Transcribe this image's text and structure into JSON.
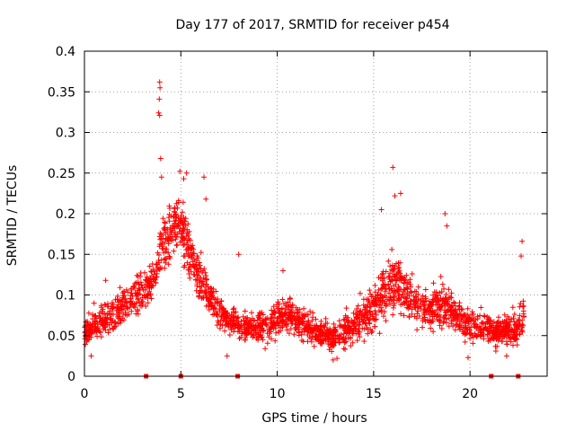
{
  "chart_data": {
    "type": "scatter",
    "title": "Day 177 of 2017, SRMTID for receiver p454",
    "xlabel": "GPS time / hours",
    "ylabel": "SRMTID / TECUs",
    "xlim": [
      0,
      24
    ],
    "ylim": [
      0,
      0.4
    ],
    "grid": true,
    "x_ticks": [
      0,
      5,
      10,
      15,
      20
    ],
    "y_ticks": [
      0,
      0.05,
      0.1,
      0.15,
      0.2,
      0.25,
      0.3,
      0.35,
      0.4
    ],
    "marker": "+",
    "color": "#ff0000",
    "zero_markers_x": [
      3.2,
      5.0,
      7.95,
      21.1,
      22.5
    ],
    "envelope": {
      "x": [
        0,
        0.5,
        1,
        1.5,
        2,
        2.5,
        3,
        3.3,
        3.6,
        3.9,
        4.2,
        4.5,
        4.8,
        5.0,
        5.3,
        5.6,
        6.0,
        6.3,
        6.7,
        7.0,
        7.5,
        8,
        8.5,
        9,
        9.5,
        10,
        10.5,
        11,
        11.5,
        12,
        12.5,
        13,
        13.5,
        14,
        14.5,
        15,
        15.3,
        15.6,
        16,
        16.3,
        16.6,
        17,
        17.5,
        18,
        18.5,
        19,
        19.5,
        20,
        20.5,
        21,
        21.5,
        22,
        22.5,
        22.8
      ],
      "mean": [
        0.055,
        0.062,
        0.068,
        0.075,
        0.085,
        0.095,
        0.105,
        0.11,
        0.12,
        0.15,
        0.17,
        0.18,
        0.19,
        0.185,
        0.17,
        0.14,
        0.12,
        0.105,
        0.09,
        0.08,
        0.068,
        0.062,
        0.06,
        0.06,
        0.062,
        0.07,
        0.078,
        0.07,
        0.06,
        0.055,
        0.05,
        0.048,
        0.055,
        0.065,
        0.075,
        0.085,
        0.095,
        0.105,
        0.115,
        0.115,
        0.105,
        0.095,
        0.085,
        0.08,
        0.09,
        0.08,
        0.07,
        0.065,
        0.06,
        0.058,
        0.055,
        0.055,
        0.06,
        0.075
      ],
      "spread": [
        0.03,
        0.03,
        0.035,
        0.035,
        0.04,
        0.04,
        0.04,
        0.045,
        0.05,
        0.06,
        0.06,
        0.06,
        0.06,
        0.06,
        0.06,
        0.05,
        0.045,
        0.04,
        0.035,
        0.035,
        0.03,
        0.03,
        0.03,
        0.03,
        0.032,
        0.035,
        0.04,
        0.035,
        0.03,
        0.03,
        0.03,
        0.028,
        0.035,
        0.04,
        0.045,
        0.05,
        0.055,
        0.06,
        0.065,
        0.06,
        0.055,
        0.05,
        0.045,
        0.04,
        0.045,
        0.04,
        0.035,
        0.035,
        0.03,
        0.03,
        0.03,
        0.03,
        0.04,
        0.05
      ]
    },
    "sample_count": 2200,
    "peaks": [
      {
        "x": 3.9,
        "y": 0.362
      },
      {
        "x": 3.92,
        "y": 0.355
      },
      {
        "x": 3.88,
        "y": 0.341
      },
      {
        "x": 3.85,
        "y": 0.324
      },
      {
        "x": 3.9,
        "y": 0.321
      },
      {
        "x": 3.95,
        "y": 0.268
      },
      {
        "x": 4.0,
        "y": 0.245
      },
      {
        "x": 4.95,
        "y": 0.252
      },
      {
        "x": 5.3,
        "y": 0.25
      },
      {
        "x": 5.15,
        "y": 0.243
      },
      {
        "x": 6.2,
        "y": 0.245
      },
      {
        "x": 6.3,
        "y": 0.218
      },
      {
        "x": 16.0,
        "y": 0.257
      },
      {
        "x": 16.1,
        "y": 0.222
      },
      {
        "x": 16.4,
        "y": 0.225
      },
      {
        "x": 15.4,
        "y": 0.205
      },
      {
        "x": 18.7,
        "y": 0.2
      },
      {
        "x": 18.8,
        "y": 0.185
      },
      {
        "x": 22.7,
        "y": 0.166
      },
      {
        "x": 22.65,
        "y": 0.148
      },
      {
        "x": 8.0,
        "y": 0.15
      },
      {
        "x": 10.3,
        "y": 0.13
      },
      {
        "x": 1.1,
        "y": 0.118
      },
      {
        "x": 0.5,
        "y": 0.09
      }
    ],
    "lows": [
      {
        "x": 12.9,
        "y": 0.02
      },
      {
        "x": 13.1,
        "y": 0.022
      },
      {
        "x": 7.4,
        "y": 0.025
      },
      {
        "x": 0.35,
        "y": 0.025
      },
      {
        "x": 19.9,
        "y": 0.023
      },
      {
        "x": 21.9,
        "y": 0.025
      }
    ]
  }
}
